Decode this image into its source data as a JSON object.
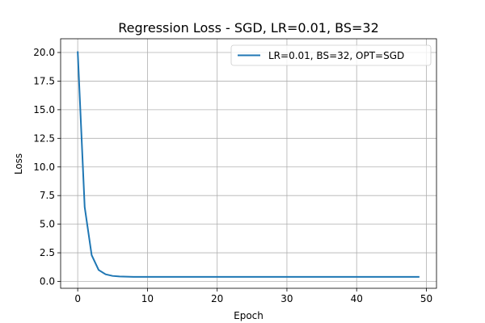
{
  "chart_data": {
    "type": "line",
    "title": "Regression Loss - SGD, LR=0.01, BS=32",
    "xlabel": "Epoch",
    "ylabel": "Loss",
    "xlim": [
      -2.45,
      51.45
    ],
    "ylim": [
      -0.6,
      21.2
    ],
    "xticks": [
      0,
      10,
      20,
      30,
      40,
      50
    ],
    "xtick_labels": [
      "0",
      "10",
      "20",
      "30",
      "40",
      "50"
    ],
    "yticks": [
      0.0,
      2.5,
      5.0,
      7.5,
      10.0,
      12.5,
      15.0,
      17.5,
      20.0
    ],
    "ytick_labels": [
      "0.0",
      "2.5",
      "5.0",
      "7.5",
      "10.0",
      "12.5",
      "15.0",
      "17.5",
      "20.0"
    ],
    "grid": true,
    "legend_position": "top-right",
    "series": [
      {
        "name": "LR=0.01, BS=32, OPT=SGD",
        "color": "#1f77b4",
        "x": [
          0,
          1,
          2,
          3,
          4,
          5,
          6,
          7,
          8,
          9,
          10,
          11,
          12,
          13,
          14,
          15,
          16,
          17,
          18,
          19,
          20,
          21,
          22,
          23,
          24,
          25,
          26,
          27,
          28,
          29,
          30,
          31,
          32,
          33,
          34,
          35,
          36,
          37,
          38,
          39,
          40,
          41,
          42,
          43,
          44,
          45,
          46,
          47,
          48,
          49
        ],
        "values": [
          20.1,
          6.5,
          2.3,
          1.0,
          0.62,
          0.48,
          0.43,
          0.41,
          0.4,
          0.4,
          0.4,
          0.4,
          0.4,
          0.4,
          0.4,
          0.4,
          0.4,
          0.4,
          0.4,
          0.4,
          0.4,
          0.4,
          0.4,
          0.4,
          0.4,
          0.4,
          0.4,
          0.4,
          0.4,
          0.4,
          0.4,
          0.4,
          0.4,
          0.4,
          0.4,
          0.4,
          0.4,
          0.4,
          0.4,
          0.4,
          0.4,
          0.4,
          0.4,
          0.4,
          0.4,
          0.4,
          0.4,
          0.4,
          0.4,
          0.4
        ]
      }
    ]
  }
}
